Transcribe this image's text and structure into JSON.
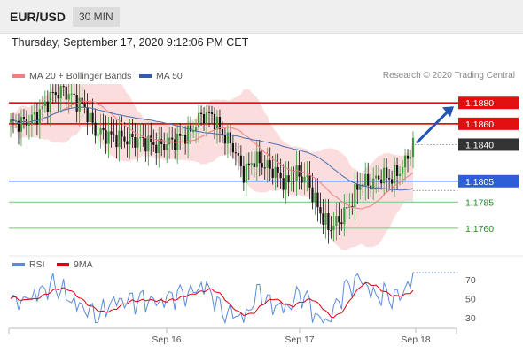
{
  "header": {
    "pair": "EUR/USD",
    "timeframe": "30 MIN"
  },
  "datetime": "Thursday, September 17, 2020 9:12:06 PM CET",
  "legend": {
    "ma20": {
      "label": "MA 20 + Bollinger Bands",
      "color": "#f08080"
    },
    "ma50": {
      "label": "MA 50",
      "color": "#2e5fa8"
    }
  },
  "credit": "Research © 2020 Trading Central",
  "rsi_legend": {
    "rsi": {
      "label": "RSI",
      "color": "#5b8bdc"
    },
    "ma9": {
      "label": "9MA",
      "color": "#e0000a"
    }
  },
  "chart_data": [
    {
      "type": "line",
      "ylim": [
        1.1737,
        1.1898
      ],
      "x": [
        "Sep 16",
        "Sep 17",
        "Sep 18"
      ],
      "levels": [
        {
          "label": "1.1880",
          "value": 1.188,
          "style": "resistance"
        },
        {
          "label": "1.1860",
          "value": 1.186,
          "style": "resistance"
        },
        {
          "label": "1.1840",
          "value": 1.184,
          "style": "current"
        },
        {
          "label": "1.1805",
          "value": 1.1805,
          "style": "pivot"
        },
        {
          "label": "1.1785",
          "value": 1.1785,
          "style": "support"
        },
        {
          "label": "1.1760",
          "value": 1.176,
          "style": "support"
        }
      ],
      "arrow": {
        "from": 1.184,
        "to": 1.188
      }
    },
    {
      "type": "line",
      "ylim": [
        20,
        80
      ],
      "y_ticks": [
        "70",
        "50",
        "30"
      ],
      "series": [
        {
          "name": "RSI"
        },
        {
          "name": "9MA"
        }
      ]
    }
  ]
}
